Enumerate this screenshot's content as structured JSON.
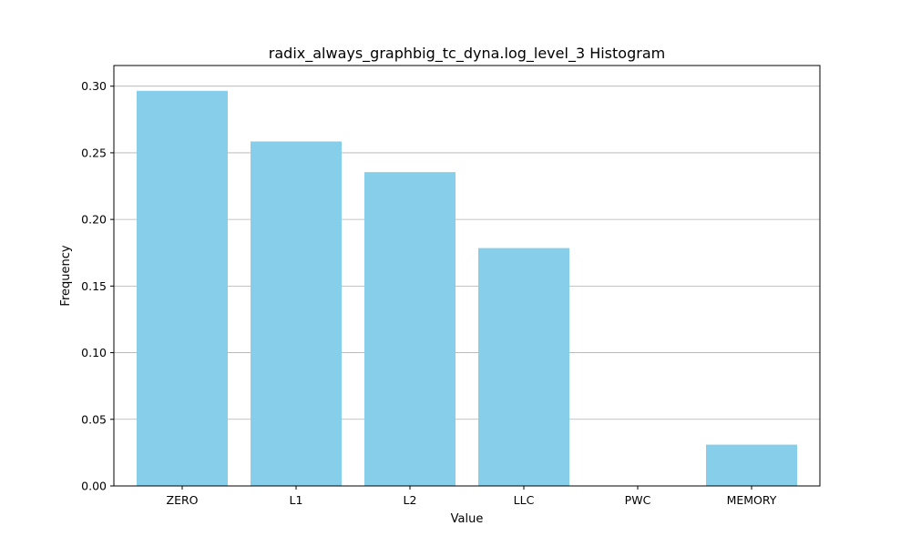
{
  "chart_data": {
    "type": "bar",
    "title": "radix_always_graphbig_tc_dyna.log_level_3 Histogram",
    "xlabel": "Value",
    "ylabel": "Frequency",
    "categories": [
      "ZERO",
      "L1",
      "L2",
      "LLC",
      "PWC",
      "MEMORY"
    ],
    "values": [
      0.2965,
      0.2585,
      0.2355,
      0.1785,
      0.0,
      0.031
    ],
    "ylim": [
      0,
      0.3155
    ],
    "yticks": [
      "0.00",
      "0.05",
      "0.10",
      "0.15",
      "0.20",
      "0.25",
      "0.30"
    ],
    "grid": "y",
    "bar_color": "#87ceeb",
    "grid_color": "#b0b0b0"
  }
}
